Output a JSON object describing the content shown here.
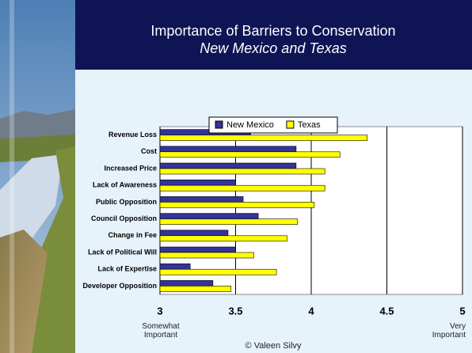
{
  "chart_data": {
    "type": "barh",
    "title": "Importance of Barriers to Conservation",
    "subtitle": "New Mexico and Texas",
    "categories": [
      "Revenue Loss",
      "Cost",
      "Increased Price",
      "Lack of Awareness",
      "Public Opposition",
      "Council Opposition",
      "Change in Fee",
      "Lack of Political Will",
      "Lack of Expertise",
      "Developer Opposition"
    ],
    "series": [
      {
        "name": "New Mexico",
        "color": "#333399",
        "values": [
          3.6,
          3.9,
          3.9,
          3.5,
          3.55,
          3.65,
          3.45,
          3.5,
          3.2,
          3.35
        ]
      },
      {
        "name": "Texas",
        "color": "#ffff00",
        "values": [
          4.37,
          4.19,
          4.09,
          4.09,
          4.02,
          3.91,
          3.84,
          3.62,
          3.77,
          3.47
        ]
      }
    ],
    "xlim": [
      3,
      5
    ],
    "xticks": [
      3,
      3.5,
      4,
      4.5,
      5
    ],
    "grid": true,
    "legend": "top",
    "scale_labels": [
      "Somewhat Important",
      "Very Important"
    ],
    "credit": "© Valeen Silvy"
  }
}
